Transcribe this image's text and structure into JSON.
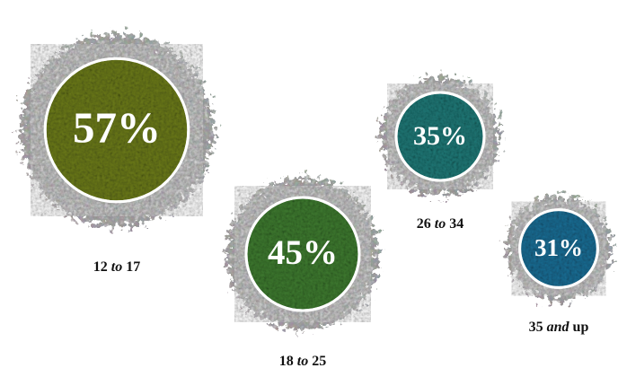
{
  "chart_data": {
    "type": "bubble",
    "categories": [
      "12 to 17",
      "18 to 25",
      "26 to 34",
      "35 and up"
    ],
    "values": [
      57,
      45,
      35,
      31
    ],
    "value_labels": [
      "57%",
      "45%",
      "35%",
      "31%"
    ],
    "colors": [
      "#6b7a1b",
      "#3e7a30",
      "#1f7876",
      "#1b6d94"
    ]
  }
}
